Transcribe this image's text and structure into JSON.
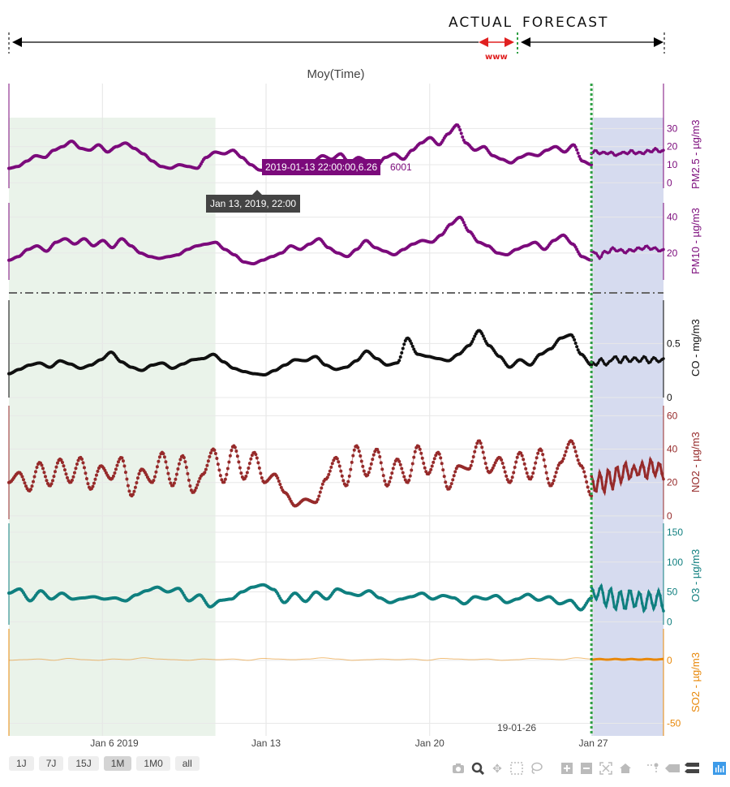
{
  "annotation": {
    "actual_label": "ACTUAL",
    "forecast_label": "FORECAST",
    "window_label": "www"
  },
  "chart_data": {
    "type": "line",
    "title": "Moy(Time)",
    "x_range": [
      "2019-01-02 00:00",
      "2019-01-30 00:00"
    ],
    "x_ticks": [
      {
        "date": "2019-01-06",
        "label": "Jan 6  2019"
      },
      {
        "date": "2019-01-13",
        "label": "Jan 13"
      },
      {
        "date": "2019-01-20",
        "label": "Jan 20"
      },
      {
        "date": "2019-01-27",
        "label": "Jan 27"
      }
    ],
    "forecast_start": "2019-01-26 22:00",
    "forecast_start_label": "19-01-26",
    "shaded_regions": [
      {
        "name": "training-window",
        "from": "2019-01-02 00:00",
        "to": "2019-01-10 20:00",
        "color": "#eaf3ea"
      },
      {
        "name": "forecast-window",
        "from": "2019-01-26 22:00",
        "to": "2019-01-30 00:00",
        "color": "#d6dbef"
      }
    ],
    "series": [
      {
        "name": "PM2.5",
        "ylabel": "PM2.5 - µg/m3",
        "color": "#7b0a7b",
        "ylim": [
          -3,
          36
        ],
        "ticks": [
          0,
          10,
          20,
          30
        ],
        "actual": [
          8,
          9,
          12,
          15,
          14,
          18,
          20,
          23,
          19,
          18,
          21,
          17,
          20,
          22,
          19,
          16,
          12,
          9,
          8,
          10,
          9,
          8,
          14,
          17,
          16,
          18,
          14,
          10,
          7,
          6.26,
          7,
          9,
          10,
          8,
          12,
          15,
          13,
          16,
          11,
          14,
          12,
          9,
          14,
          16,
          13,
          18,
          22,
          25,
          21,
          27,
          32,
          22,
          18,
          20,
          15,
          13,
          11,
          14,
          16,
          15,
          18,
          20,
          17,
          21,
          12,
          10
        ],
        "forecast": [
          16,
          18,
          16,
          17,
          16,
          17,
          15,
          16,
          17,
          16,
          18,
          16,
          17,
          16,
          18,
          17,
          19,
          17,
          18
        ]
      },
      {
        "name": "PM10",
        "ylabel": "PM10 - µg/m3",
        "color": "#7b0a7b",
        "ylim": [
          5,
          48
        ],
        "ticks": [
          20,
          40
        ],
        "actual": [
          16,
          18,
          22,
          24,
          21,
          26,
          28,
          25,
          28,
          24,
          27,
          23,
          28,
          24,
          20,
          18,
          17,
          18,
          19,
          22,
          24,
          25,
          26,
          22,
          19,
          15,
          14,
          16,
          18,
          20,
          24,
          22,
          25,
          28,
          23,
          20,
          18,
          22,
          27,
          23,
          21,
          19,
          22,
          25,
          27,
          26,
          30,
          36,
          40,
          32,
          26,
          24,
          20,
          19,
          22,
          24,
          26,
          22,
          27,
          30,
          25,
          18,
          16
        ],
        "forecast": [
          21,
          20,
          17,
          21,
          20,
          23,
          21,
          22,
          20,
          22,
          21,
          23,
          22,
          24,
          22,
          23,
          21,
          22
        ]
      },
      {
        "name": "CO",
        "ylabel": "CO - mg/m3",
        "color": "#111111",
        "ylim": [
          0,
          0.9
        ],
        "ticks": [
          0,
          0.5
        ],
        "actual": [
          0.22,
          0.26,
          0.3,
          0.32,
          0.28,
          0.34,
          0.31,
          0.27,
          0.3,
          0.35,
          0.42,
          0.33,
          0.28,
          0.25,
          0.3,
          0.32,
          0.27,
          0.31,
          0.35,
          0.36,
          0.4,
          0.33,
          0.27,
          0.24,
          0.22,
          0.21,
          0.25,
          0.3,
          0.35,
          0.34,
          0.38,
          0.3,
          0.26,
          0.28,
          0.34,
          0.43,
          0.36,
          0.3,
          0.32,
          0.55,
          0.4,
          0.38,
          0.36,
          0.34,
          0.4,
          0.48,
          0.62,
          0.48,
          0.38,
          0.28,
          0.35,
          0.3,
          0.4,
          0.45,
          0.55,
          0.58,
          0.4,
          0.3
        ],
        "forecast": [
          0.33,
          0.3,
          0.36,
          0.3,
          0.34,
          0.38,
          0.32,
          0.38,
          0.33,
          0.37,
          0.33,
          0.38,
          0.32,
          0.37,
          0.33,
          0.36
        ]
      },
      {
        "name": "NO2",
        "ylabel": "NO2 - µg/m3",
        "color": "#962a2a",
        "ylim": [
          -2,
          66
        ],
        "ticks": [
          0,
          20,
          40,
          60
        ],
        "actual": [
          20,
          26,
          15,
          32,
          18,
          34,
          20,
          35,
          16,
          30,
          22,
          35,
          12,
          28,
          20,
          38,
          18,
          36,
          14,
          25,
          40,
          20,
          42,
          22,
          38,
          20,
          25,
          14,
          6,
          10,
          8,
          22,
          35,
          18,
          42,
          24,
          40,
          18,
          34,
          20,
          42,
          25,
          38,
          16,
          30,
          28,
          45,
          26,
          35,
          20,
          38,
          22,
          40,
          18,
          32,
          45,
          30,
          12
        ],
        "forecast": [
          24,
          14,
          26,
          14,
          28,
          16,
          30,
          20,
          32,
          22,
          30,
          24,
          32,
          22,
          34,
          24,
          32,
          22
        ]
      },
      {
        "name": "O3",
        "ylabel": "O3 - µg/m3",
        "color": "#0f7f7f",
        "ylim": [
          -5,
          165
        ],
        "ticks": [
          0,
          50,
          100,
          150
        ],
        "actual": [
          48,
          55,
          35,
          52,
          38,
          48,
          38,
          40,
          42,
          38,
          40,
          35,
          45,
          52,
          58,
          50,
          56,
          35,
          45,
          25,
          36,
          38,
          50,
          58,
          62,
          54,
          32,
          48,
          34,
          50,
          38,
          55,
          48,
          44,
          52,
          40,
          32,
          38,
          42,
          48,
          38,
          44,
          40,
          30,
          42,
          38,
          44,
          32,
          38,
          46,
          36,
          42,
          30,
          36,
          20,
          40
        ],
        "forecast": [
          58,
          38,
          60,
          26,
          56,
          20,
          52,
          20,
          54,
          24,
          50,
          18,
          50,
          22,
          52,
          18
        ]
      },
      {
        "name": "SO2",
        "ylabel": "SO2 - µg/m3",
        "color": "#e8880a",
        "ylim": [
          -60,
          25
        ],
        "ticks": [
          -50,
          0
        ],
        "actual": [
          0,
          0.5,
          1,
          0,
          1.5,
          0.5,
          0,
          1,
          0.5,
          2,
          1,
          0.5,
          0,
          1,
          0.5,
          1,
          0,
          1.5,
          1,
          0.5,
          1,
          2,
          1,
          0,
          0.5,
          1,
          0.5,
          1,
          0,
          1.5,
          1,
          0.5,
          1,
          0,
          0.5,
          1.5,
          1,
          0.5,
          2,
          1
        ],
        "forecast": [
          0.5,
          1,
          0.5,
          1,
          0.5,
          1,
          0.5,
          1,
          0.5,
          1
        ]
      }
    ],
    "hover": {
      "point_label": "2019-01-13 22:00:00,6.26",
      "trace_name": "6001",
      "x_label": "Jan 13, 2019, 22:00"
    }
  },
  "range_selector": {
    "buttons": [
      "1J",
      "7J",
      "15J",
      "1M",
      "1M0",
      "all"
    ],
    "active": "1M"
  },
  "modebar": {
    "icons": [
      "camera-icon",
      "zoom-icon",
      "pan-icon",
      "box-select-icon",
      "lasso-select-icon",
      "zoom-in-icon",
      "zoom-out-icon",
      "autoscale-icon",
      "reset-axes-icon",
      "spike-lines-icon",
      "hover-closest-icon",
      "hover-compare-icon",
      "plotly-logo-icon"
    ]
  }
}
